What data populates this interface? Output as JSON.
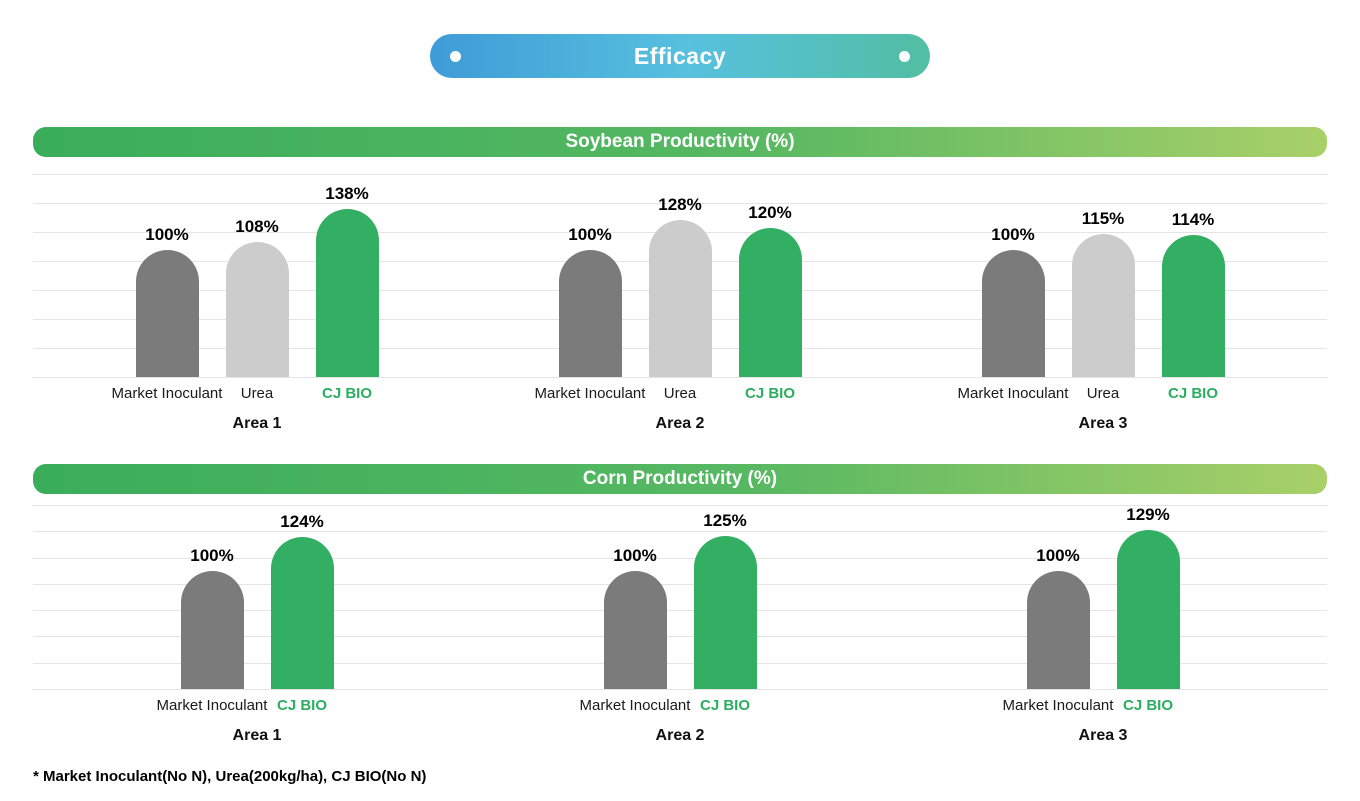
{
  "title_pill": {
    "label": "Efficacy"
  },
  "footnote": "* Market Inoculant(No N), Urea(200kg/ha), CJ BIO(No N)",
  "colors": {
    "market_inoculant_bar": "#7B7B7B",
    "urea_bar": "#CCCCCC",
    "cj_bio_bar": "#33AF63",
    "cj_bio_label": "#2BAE5F",
    "header_gradient_start": "#3AAD5B",
    "header_gradient_end": "#A9D069",
    "pill_gradient_start": "#3F9BD7",
    "pill_gradient_mid": "#57C1DE",
    "pill_gradient_end": "#52BEA2",
    "gridline": "#E4E4E4"
  },
  "chart_data": [
    {
      "type": "bar",
      "title": "Soybean Productivity (%)",
      "unit": "%",
      "grid": true,
      "legend_position": "none",
      "categories": [
        "Area 1",
        "Area 2",
        "Area 3"
      ],
      "series": [
        {
          "name": "Market Inoculant",
          "color": "#7B7B7B",
          "emphasis": false,
          "values": [
            100,
            100,
            100
          ]
        },
        {
          "name": "Urea",
          "color": "#CCCCCC",
          "emphasis": false,
          "values": [
            108,
            128,
            115
          ]
        },
        {
          "name": "CJ BIO",
          "color": "#33AF63",
          "emphasis": true,
          "values": [
            138,
            120,
            114
          ]
        }
      ]
    },
    {
      "type": "bar",
      "title": "Corn Productivity (%)",
      "unit": "%",
      "grid": true,
      "legend_position": "none",
      "categories": [
        "Area 1",
        "Area 2",
        "Area 3"
      ],
      "series": [
        {
          "name": "Market Inoculant",
          "color": "#7B7B7B",
          "emphasis": false,
          "values": [
            100,
            100,
            100
          ]
        },
        {
          "name": "CJ BIO",
          "color": "#33AF63",
          "emphasis": true,
          "values": [
            124,
            125,
            129
          ]
        }
      ]
    }
  ]
}
